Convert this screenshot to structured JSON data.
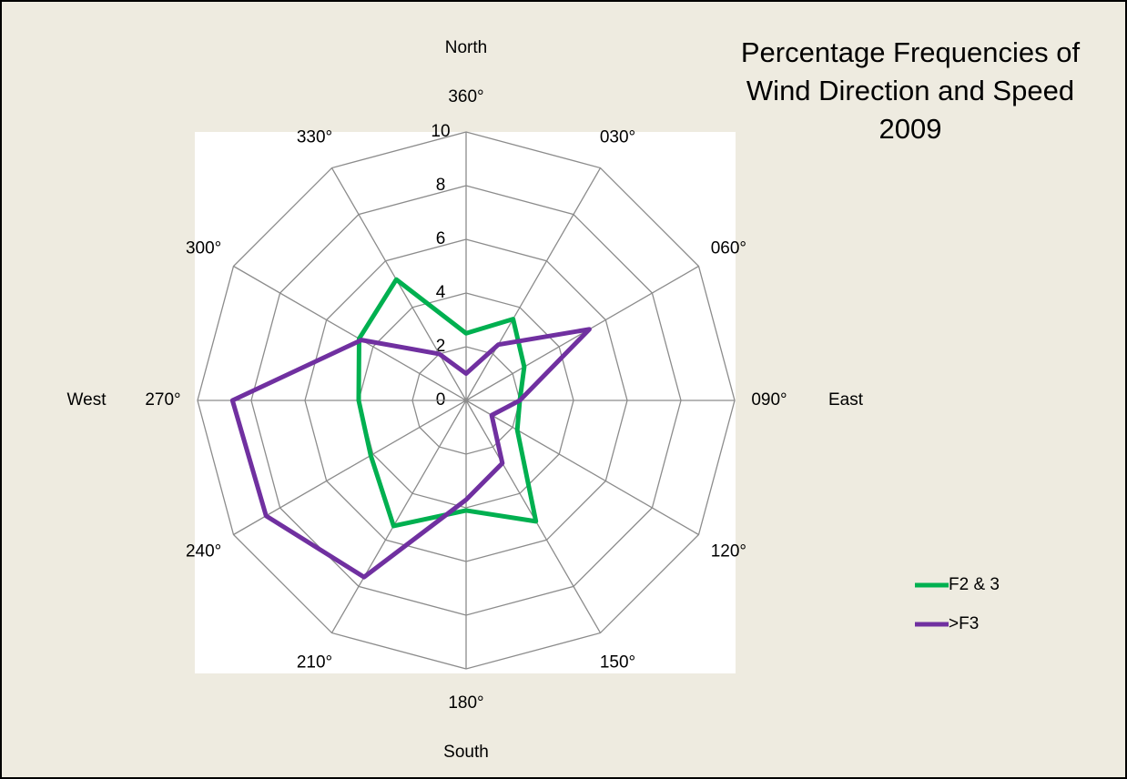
{
  "chart_data": {
    "type": "radar",
    "title": [
      "Percentage Frequencies of",
      "Wind Direction and Speed",
      "2009"
    ],
    "categories": [
      "360°",
      "030°",
      "060°",
      "090°",
      "120°",
      "150°",
      "180°",
      "210°",
      "240°",
      "270°",
      "300°",
      "330°"
    ],
    "annotations": [
      "North",
      "East",
      "South",
      "West"
    ],
    "series": [
      {
        "name": "F2 & 3",
        "color": "#00b050",
        "values": [
          2.5,
          3.5,
          2.5,
          2.0,
          2.2,
          5.2,
          4.1,
          5.4,
          4.1,
          4.0,
          4.6,
          5.2
        ]
      },
      {
        "name": ">F3",
        "color": "#7030a0",
        "values": [
          1.0,
          2.4,
          5.3,
          2.0,
          1.1,
          2.7,
          3.7,
          7.6,
          8.6,
          8.7,
          4.5,
          2.0
        ]
      }
    ],
    "ylim": [
      0,
      10
    ],
    "yticks": [
      0,
      2,
      4,
      6,
      8,
      10
    ],
    "grid": true,
    "legend": "right"
  }
}
